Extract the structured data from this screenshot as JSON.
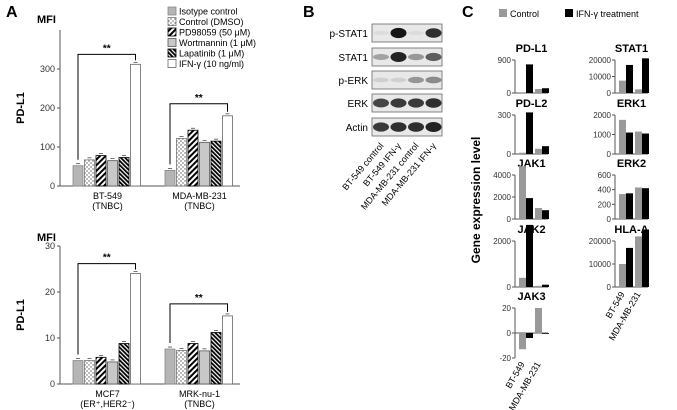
{
  "panels": {
    "a": "A",
    "b": "B",
    "c": "C"
  },
  "panel_a": {
    "legend": [
      {
        "label": "Isotype control",
        "pattern": "solid-gray"
      },
      {
        "label": "Control (DMSO)",
        "pattern": "dots"
      },
      {
        "label": "PD98059 (50 μM)",
        "pattern": "hatch"
      },
      {
        "label": "Wortmannin (1 μM)",
        "pattern": "gray-outline"
      },
      {
        "label": "Lapatinib (1 μM)",
        "pattern": "dense-hatch"
      },
      {
        "label": "IFN-γ (10 ng/ml)",
        "pattern": "white"
      }
    ],
    "significance": "**"
  },
  "panel_b": {
    "rows": [
      "p-STAT1",
      "STAT1",
      "p-ERK",
      "ERK",
      "Actin"
    ],
    "lanes": [
      "BT-549 control",
      "BT-549 IFN-γ",
      "MDA-MB-231 control",
      "MDA-MB-231 IFN-γ"
    ]
  },
  "panel_c": {
    "legend": [
      {
        "label": "Control",
        "color": "#999999"
      },
      {
        "label": "IFN-γ treatment",
        "color": "#000000"
      }
    ],
    "ylabel": "Gene expression level"
  },
  "chart_data": [
    {
      "type": "bar",
      "id": "a-top",
      "title": "MFI",
      "ylabel": "PD-L1",
      "ylim": [
        0,
        400
      ],
      "yticks": [
        0,
        100,
        200,
        300
      ],
      "groups": [
        {
          "label": "BT-549",
          "sublabel": "(TNBC)",
          "values": [
            52,
            67,
            78,
            65,
            73,
            312
          ]
        },
        {
          "label": "MDA-MB-231",
          "sublabel": "(TNBC)",
          "values": [
            40,
            122,
            143,
            112,
            115,
            180
          ]
        }
      ]
    },
    {
      "type": "bar",
      "id": "a-bottom",
      "title": "MFI",
      "ylabel": "PD-L1",
      "ylim": [
        0,
        30
      ],
      "yticks": [
        0,
        10,
        20,
        30
      ],
      "groups": [
        {
          "label": "MCF7",
          "sublabel": "(ER⁺,HER2⁻)",
          "values": [
            5.1,
            5.1,
            5.8,
            4.8,
            8.8,
            24
          ]
        },
        {
          "label": "MRK-nu-1",
          "sublabel": "(TNBC)",
          "values": [
            7.6,
            7.3,
            8.8,
            7.2,
            11.2,
            14.8
          ]
        }
      ]
    },
    {
      "type": "bar",
      "id": "c-charts",
      "categories": [
        "BT-549",
        "MDA-MB-231"
      ],
      "series_names": [
        "Control",
        "IFN-γ treatment"
      ],
      "charts": [
        {
          "title": "PD-L1",
          "ylim": [
            0,
            900
          ],
          "yticks": [
            0,
            900
          ],
          "control": [
            20,
            110
          ],
          "ifn": [
            780,
            130
          ]
        },
        {
          "title": "STAT1",
          "ylim": [
            0,
            20000
          ],
          "yticks": [
            0,
            10000,
            20000
          ],
          "control": [
            7500,
            2200
          ],
          "ifn": [
            17000,
            21000
          ]
        },
        {
          "title": "PD-L2",
          "ylim": [
            0,
            300
          ],
          "yticks": [
            0,
            300
          ],
          "control": [
            10,
            40
          ],
          "ifn": [
            320,
            60
          ]
        },
        {
          "title": "ERK1",
          "ylim": [
            0,
            2000
          ],
          "yticks": [
            0,
            1000,
            2000
          ],
          "control": [
            1750,
            1150
          ],
          "ifn": [
            1100,
            1050
          ]
        },
        {
          "title": "JAK1",
          "ylim": [
            0,
            4000
          ],
          "yticks": [
            0,
            2000,
            4000
          ],
          "control": [
            4800,
            1000
          ],
          "ifn": [
            1900,
            800
          ]
        },
        {
          "title": "ERK2",
          "ylim": [
            0,
            600
          ],
          "yticks": [
            0,
            200,
            400,
            600
          ],
          "control": [
            340,
            430
          ],
          "ifn": [
            350,
            420
          ]
        },
        {
          "title": "JAK2",
          "ylim": [
            0,
            2000
          ],
          "yticks": [
            0,
            2000
          ],
          "control": [
            400,
            50
          ],
          "ifn": [
            2800,
            100
          ]
        },
        {
          "title": "HLA-A",
          "ylim": [
            0,
            20000
          ],
          "yticks": [
            0,
            10000,
            20000
          ],
          "control": [
            10000,
            22000
          ],
          "ifn": [
            17000,
            25000
          ]
        },
        {
          "title": "JAK3",
          "ylim": [
            -20,
            20
          ],
          "yticks": [
            -20,
            0,
            20
          ],
          "control": [
            -13,
            20
          ],
          "ifn": [
            -4,
            0
          ]
        }
      ]
    }
  ]
}
